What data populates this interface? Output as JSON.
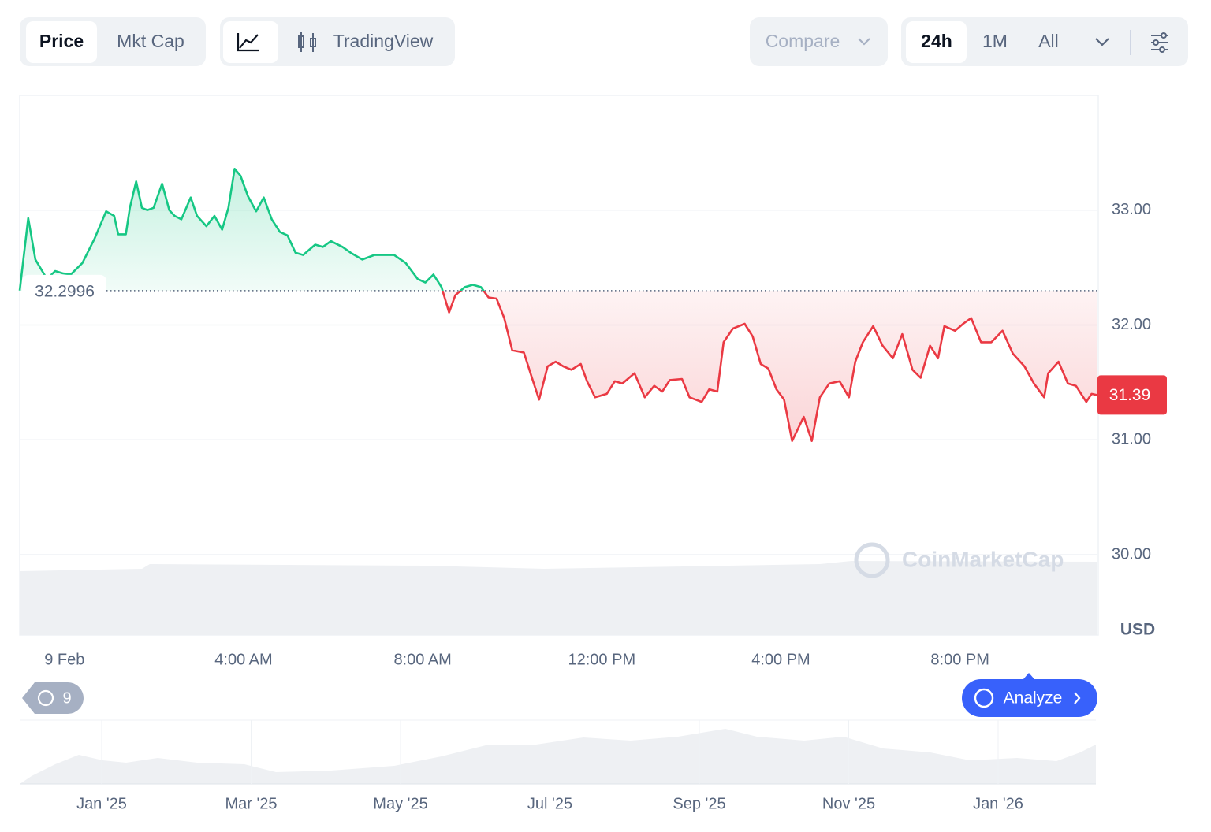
{
  "toolbar": {
    "price": "Price",
    "mkt_cap": "Mkt Cap",
    "tradingview": "TradingView",
    "compare": "Compare",
    "range_24h": "24h",
    "range_1m": "1M",
    "range_all": "All"
  },
  "chart_data": {
    "type": "line",
    "x": [
      -1.0,
      -0.81,
      -0.65,
      -0.39,
      -0.21,
      -0.04,
      0.14,
      0.4,
      0.67,
      0.93,
      1.11,
      1.2,
      1.37,
      1.46,
      1.6,
      1.73,
      1.85,
      1.99,
      2.18,
      2.34,
      2.46,
      2.61,
      2.82,
      2.96,
      3.17,
      3.35,
      3.52,
      3.66,
      3.8,
      3.93,
      4.1,
      4.28,
      4.45,
      4.63,
      4.81,
      4.98,
      5.16,
      5.33,
      5.6,
      5.77,
      5.95,
      6.21,
      6.39,
      6.65,
      6.92,
      7.1,
      7.36,
      7.62,
      7.89,
      8.06,
      8.24,
      8.42,
      8.59,
      8.73,
      8.94,
      9.12,
      9.3,
      9.47,
      9.65,
      9.82,
      10.0,
      10.26,
      10.44,
      10.6,
      10.79,
      10.97,
      11.14,
      11.32,
      11.53,
      11.67,
      11.85,
      12.11,
      12.29,
      12.46,
      12.73,
      12.96,
      13.17,
      13.35,
      13.52,
      13.79,
      13.96,
      14.23,
      14.4,
      14.58,
      14.72,
      14.93,
      15.19,
      15.37,
      15.55,
      15.72,
      15.9,
      16.07,
      16.25,
      16.51,
      16.69,
      16.87,
      17.08,
      17.31,
      17.52,
      17.66,
      17.83,
      18.06,
      18.27,
      18.5,
      18.71,
      18.94,
      19.12,
      19.33,
      19.51,
      19.65,
      19.89,
      20.07,
      20.25,
      20.47,
      20.7,
      20.95,
      21.18,
      21.44,
      21.65,
      21.88,
      21.97,
      22.2,
      22.41,
      22.59,
      22.82,
      22.94,
      23.06
    ],
    "values": [
      32.3,
      32.93,
      32.57,
      32.4,
      32.47,
      32.45,
      32.44,
      32.54,
      32.75,
      32.99,
      32.95,
      32.79,
      32.79,
      33.02,
      33.25,
      33.02,
      33.0,
      33.02,
      33.23,
      33.0,
      32.95,
      32.92,
      33.11,
      32.95,
      32.86,
      32.95,
      32.83,
      33.02,
      33.36,
      33.3,
      33.12,
      32.99,
      33.11,
      32.92,
      32.81,
      32.78,
      32.63,
      32.61,
      32.7,
      32.68,
      32.73,
      32.68,
      32.63,
      32.57,
      32.61,
      32.61,
      32.61,
      32.54,
      32.4,
      32.37,
      32.44,
      32.33,
      32.11,
      32.26,
      32.33,
      32.35,
      32.33,
      32.24,
      32.23,
      32.06,
      31.78,
      31.76,
      31.54,
      31.35,
      31.64,
      31.68,
      31.64,
      31.61,
      31.66,
      31.51,
      31.37,
      31.4,
      31.51,
      31.49,
      31.58,
      31.37,
      31.47,
      31.42,
      31.52,
      31.53,
      31.37,
      31.33,
      31.44,
      31.42,
      31.85,
      31.97,
      32.01,
      31.9,
      31.66,
      31.62,
      31.44,
      31.35,
      30.99,
      31.2,
      30.99,
      31.37,
      31.49,
      31.51,
      31.37,
      31.68,
      31.85,
      31.99,
      31.82,
      31.71,
      31.92,
      31.61,
      31.54,
      31.82,
      31.71,
      31.99,
      31.95,
      32.01,
      32.06,
      31.85,
      31.85,
      31.95,
      31.75,
      31.64,
      31.49,
      31.37,
      31.58,
      31.68,
      31.49,
      31.47,
      31.33,
      31.4,
      31.39
    ],
    "reference_price": 32.2996,
    "current_price": 31.39,
    "up_color": "#16c784",
    "down_color": "#ea3943",
    "xlim": [
      -1,
      23.07
    ],
    "xticks": [
      {
        "value": 0,
        "label": "9 Feb"
      },
      {
        "value": 4,
        "label": "4:00 AM"
      },
      {
        "value": 8,
        "label": "8:00 AM"
      },
      {
        "value": 12,
        "label": "12:00 PM"
      },
      {
        "value": 16,
        "label": "4:00 PM"
      },
      {
        "value": 20,
        "label": "8:00 PM"
      }
    ],
    "ylim": [
      29.3,
      34.0
    ],
    "yticks": [
      {
        "value": 30,
        "label": "30.00"
      },
      {
        "value": 31,
        "label": "31.00"
      },
      {
        "value": 32,
        "label": "32.00"
      },
      {
        "value": 33,
        "label": "33.00"
      }
    ],
    "y_unit": "USD",
    "grid": true,
    "watermark": "CoinMarketCap"
  },
  "history_count": "9",
  "analyze": "Analyze",
  "navigator": {
    "labels": [
      "Jan '25",
      "Mar '25",
      "May '25",
      "Jul '25",
      "Sep '25",
      "Nov '25",
      "Jan '26"
    ]
  }
}
